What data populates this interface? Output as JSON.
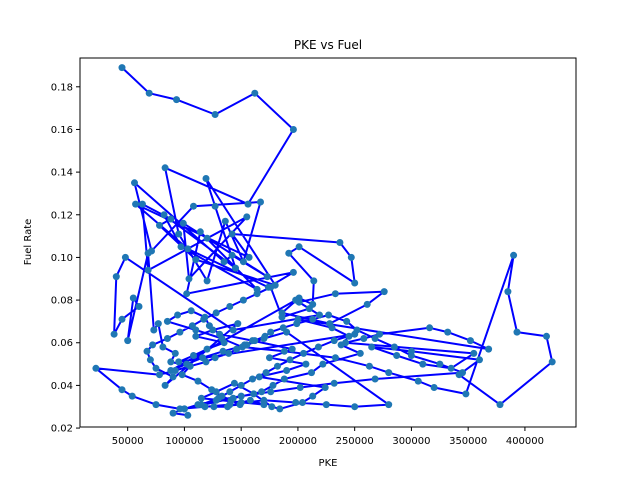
{
  "chart_data": {
    "type": "scatter",
    "title": "PKE vs Fuel",
    "xlabel": "PKE",
    "ylabel": "Fuel Rate",
    "xlim": [
      8000,
      445000
    ],
    "ylim": [
      0.0205,
      0.1935
    ],
    "x_ticks": [
      50000,
      100000,
      150000,
      200000,
      250000,
      300000,
      350000,
      400000
    ],
    "y_ticks": [
      0.02,
      0.04,
      0.06,
      0.08,
      0.1,
      0.12,
      0.14,
      0.16,
      0.18
    ],
    "x_tick_labels": [
      "50000",
      "100000",
      "150000",
      "200000",
      "250000",
      "300000",
      "350000",
      "400000"
    ],
    "y_tick_labels": [
      "0.02",
      "0.04",
      "0.06",
      "0.08",
      "0.10",
      "0.12",
      "0.14",
      "0.16",
      "0.18"
    ],
    "grid": false,
    "legend": "none",
    "colors": {
      "line": "#0000ff",
      "marker": "#1f77b4"
    },
    "series": [
      {
        "x": [
          45000,
          69000,
          93000,
          127000,
          162000,
          196000,
          156000,
          83000,
          95000,
          120000,
          136000,
          152000,
          167000,
          108000,
          71000,
          56000,
          135000,
          142000,
          173000,
          120000,
          99000,
          104000,
          155000,
          68000,
          63000,
          88000,
          78000,
          110000,
          180000,
          119000,
          127000,
          145000,
          82000,
          97000,
          164000,
          114000,
          102000,
          196000,
          174000,
          103000,
          57000,
          157000,
          142000,
          237000,
          247000,
          250000,
          201000,
          192000,
          214000,
          213000,
          201000,
          186000,
          228000,
          261000,
          276000,
          233000,
          201000,
          219000,
          143000,
          48000,
          40000,
          38000,
          45000,
          60000,
          55000,
          50000,
          68000,
          73000,
          77000,
          81000,
          92000,
          88000,
          105000,
          98000,
          112000,
          124000,
          133000,
          141000,
          149000,
          126000,
          138000,
          150000,
          158000,
          170000,
          115000,
          128000,
          144000,
          161000,
          177000,
          184000,
          204000,
          213000,
          224000,
          166000,
          190000,
          207000,
          175000,
          195000,
          160000,
          131000,
          122000,
          118000,
          106000,
          94000,
          85000,
          110000,
          133000,
          151000,
          188000,
          233000,
          263000,
          280000,
          306000,
          320000,
          348000,
          390000,
          385000,
          393000,
          419000,
          424000,
          378000,
          342000,
          360000,
          300000,
          265000,
          287000,
          310000,
          335000,
          355000,
          242000,
          258000,
          272000,
          316000,
          332000,
          352000,
          368000,
          200000,
          230000,
          245000,
          238000,
          255000,
          222000,
          212000,
          188000,
          178000,
          168000,
          143000,
          100000,
          115000,
          130000,
          140000,
          150000,
          160000,
          172000,
          182000,
          193000,
          205000,
          218000,
          232000,
          250000,
          95000,
          108000,
          120000,
          135000,
          110000,
          125000,
          147000,
          83000,
          90000,
          75000,
          70000,
          67000,
          72000,
          85000,
          96000,
          107000,
          117000,
          128000,
          140000,
          152000,
          164000,
          176000,
          186000,
          210000,
          198000,
          88000,
          102000,
          116000,
          134000,
          155000,
          170000,
          190000,
          280000,
          250000,
          225000,
          198000,
          170000,
          140000,
          118000,
          96000,
          75000,
          54000,
          45000,
          22000,
          78000,
          92000,
          105000,
          119000,
          127000,
          139000,
          146000,
          153000,
          162000,
          171000,
          176000,
          187000,
          199000,
          213000,
          227000,
          243000,
          252000,
          268000,
          285000,
          300000,
          325000,
          345000,
          268000,
          232000,
          202000,
          176000,
          150000,
          128000,
          112000,
          100000,
          90000,
          103000
        ],
        "y": [
          0.189,
          0.177,
          0.174,
          0.167,
          0.177,
          0.16,
          0.125,
          0.142,
          0.111,
          0.089,
          0.117,
          0.098,
          0.126,
          0.124,
          0.103,
          0.135,
          0.098,
          0.101,
          0.091,
          0.109,
          0.116,
          0.09,
          0.119,
          0.094,
          0.125,
          0.118,
          0.115,
          0.099,
          0.087,
          0.137,
          0.124,
          0.095,
          0.12,
          0.105,
          0.085,
          0.112,
          0.083,
          0.093,
          0.086,
          0.104,
          0.125,
          0.1,
          0.111,
          0.107,
          0.1,
          0.088,
          0.105,
          0.102,
          0.089,
          0.078,
          0.081,
          0.074,
          0.069,
          0.078,
          0.084,
          0.083,
          0.079,
          0.073,
          0.066,
          0.1,
          0.091,
          0.064,
          0.071,
          0.077,
          0.081,
          0.061,
          0.102,
          0.066,
          0.069,
          0.058,
          0.055,
          0.051,
          0.049,
          0.045,
          0.042,
          0.038,
          0.035,
          0.033,
          0.031,
          0.03,
          0.03,
          0.032,
          0.033,
          0.031,
          0.034,
          0.037,
          0.041,
          0.036,
          0.03,
          0.029,
          0.032,
          0.035,
          0.039,
          0.044,
          0.047,
          0.05,
          0.053,
          0.057,
          0.061,
          0.064,
          0.068,
          0.072,
          0.075,
          0.073,
          0.07,
          0.066,
          0.062,
          0.058,
          0.056,
          0.053,
          0.049,
          0.046,
          0.042,
          0.039,
          0.036,
          0.101,
          0.084,
          0.065,
          0.063,
          0.051,
          0.031,
          0.045,
          0.052,
          0.056,
          0.058,
          0.054,
          0.05,
          0.048,
          0.055,
          0.06,
          0.062,
          0.064,
          0.067,
          0.065,
          0.061,
          0.057,
          0.071,
          0.067,
          0.063,
          0.059,
          0.055,
          0.05,
          0.046,
          0.043,
          0.04,
          0.037,
          0.034,
          0.029,
          0.031,
          0.034,
          0.037,
          0.04,
          0.043,
          0.046,
          0.049,
          0.052,
          0.055,
          0.058,
          0.061,
          0.064,
          0.051,
          0.054,
          0.057,
          0.06,
          0.063,
          0.066,
          0.069,
          0.04,
          0.044,
          0.048,
          0.052,
          0.056,
          0.059,
          0.062,
          0.065,
          0.068,
          0.071,
          0.074,
          0.077,
          0.08,
          0.083,
          0.086,
          0.072,
          0.076,
          0.08,
          0.047,
          0.05,
          0.053,
          0.056,
          0.059,
          0.062,
          0.065,
          0.031,
          0.03,
          0.031,
          0.032,
          0.033,
          0.031,
          0.03,
          0.029,
          0.031,
          0.035,
          0.038,
          0.048,
          0.045,
          0.047,
          0.049,
          0.051,
          0.053,
          0.055,
          0.057,
          0.059,
          0.061,
          0.063,
          0.065,
          0.067,
          0.069,
          0.071,
          0.073,
          0.07,
          0.066,
          0.062,
          0.058,
          0.054,
          0.05,
          0.046,
          0.043,
          0.041,
          0.039,
          0.037,
          0.035,
          0.033,
          0.031,
          0.029,
          0.027,
          0.026
        ]
      }
    ]
  }
}
